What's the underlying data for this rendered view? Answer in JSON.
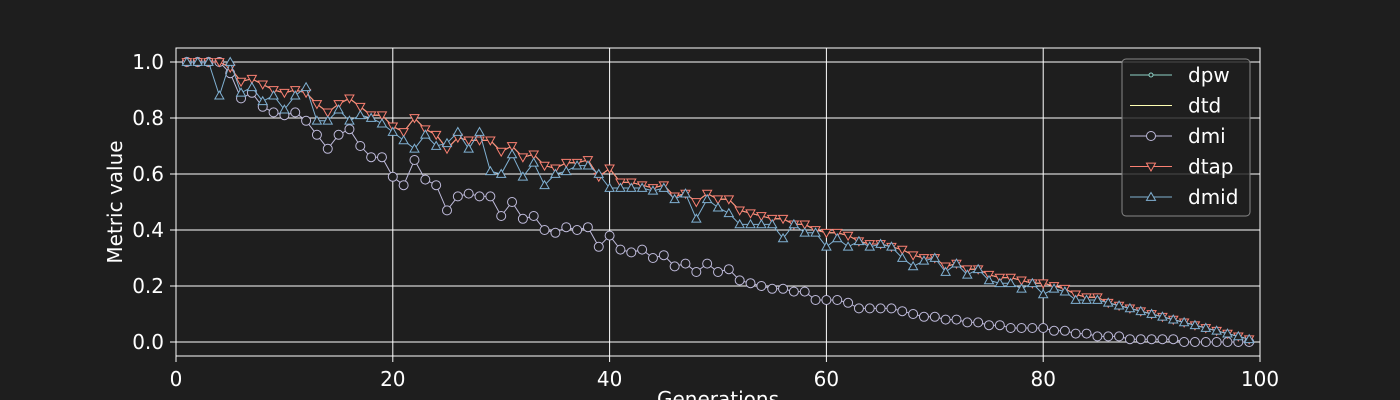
{
  "chart_data": {
    "type": "line",
    "title": "",
    "xlabel": "Generations",
    "ylabel": "Metric value",
    "xlim": [
      0,
      100
    ],
    "ylim": [
      -0.05,
      1.05
    ],
    "x_ticks": [
      0,
      20,
      40,
      60,
      80,
      100
    ],
    "y_ticks": [
      0.0,
      0.2,
      0.4,
      0.6,
      0.8,
      1.0
    ],
    "x_tick_labels": [
      "0",
      "20",
      "40",
      "60",
      "80",
      "100"
    ],
    "y_tick_labels": [
      "0.0",
      "0.2",
      "0.4",
      "0.6",
      "0.8",
      "1.0"
    ],
    "grid": true,
    "legend_position": "top-right",
    "x": [
      1,
      2,
      3,
      4,
      5,
      6,
      7,
      8,
      9,
      10,
      11,
      12,
      13,
      14,
      15,
      16,
      17,
      18,
      19,
      20,
      21,
      22,
      23,
      24,
      25,
      26,
      27,
      28,
      29,
      30,
      31,
      32,
      33,
      34,
      35,
      36,
      37,
      38,
      39,
      40,
      41,
      42,
      43,
      44,
      45,
      46,
      47,
      48,
      49,
      50,
      51,
      52,
      53,
      54,
      55,
      56,
      57,
      58,
      59,
      60,
      61,
      62,
      63,
      64,
      65,
      66,
      67,
      68,
      69,
      70,
      71,
      72,
      73,
      74,
      75,
      76,
      77,
      78,
      79,
      80,
      81,
      82,
      83,
      84,
      85,
      86,
      87,
      88,
      89,
      90,
      91,
      92,
      93,
      94,
      95,
      96,
      97,
      98,
      99
    ],
    "series": [
      {
        "name": "dpw",
        "color": "#8dd3c7",
        "marker": "dot",
        "values": [
          1.0,
          1.0,
          1.0,
          1.0,
          0.98,
          0.93,
          0.94,
          0.92,
          0.9,
          0.89,
          0.9,
          0.89,
          0.85,
          0.82,
          0.85,
          0.87,
          0.84,
          0.81,
          0.81,
          0.77,
          0.75,
          0.8,
          0.76,
          0.74,
          0.69,
          0.73,
          0.72,
          0.72,
          0.72,
          0.68,
          0.7,
          0.66,
          0.67,
          0.63,
          0.62,
          0.64,
          0.64,
          0.65,
          0.59,
          0.62,
          0.57,
          0.57,
          0.56,
          0.55,
          0.56,
          0.52,
          0.53,
          0.5,
          0.53,
          0.51,
          0.51,
          0.47,
          0.46,
          0.45,
          0.44,
          0.44,
          0.42,
          0.42,
          0.4,
          0.39,
          0.39,
          0.38,
          0.36,
          0.35,
          0.35,
          0.34,
          0.33,
          0.31,
          0.3,
          0.3,
          0.27,
          0.28,
          0.26,
          0.26,
          0.24,
          0.23,
          0.23,
          0.22,
          0.21,
          0.21,
          0.2,
          0.19,
          0.17,
          0.16,
          0.16,
          0.14,
          0.13,
          0.12,
          0.11,
          0.1,
          0.09,
          0.08,
          0.07,
          0.06,
          0.05,
          0.04,
          0.03,
          0.02,
          0.01
        ]
      },
      {
        "name": "dtd",
        "color": "#ffffb3",
        "marker": "none",
        "values": [
          1.0,
          1.0,
          1.0,
          1.0,
          0.98,
          0.93,
          0.94,
          0.92,
          0.9,
          0.89,
          0.9,
          0.89,
          0.85,
          0.82,
          0.85,
          0.87,
          0.84,
          0.81,
          0.81,
          0.77,
          0.75,
          0.8,
          0.76,
          0.74,
          0.69,
          0.73,
          0.72,
          0.72,
          0.72,
          0.68,
          0.7,
          0.66,
          0.67,
          0.63,
          0.62,
          0.64,
          0.64,
          0.65,
          0.59,
          0.62,
          0.57,
          0.57,
          0.56,
          0.55,
          0.56,
          0.52,
          0.53,
          0.5,
          0.53,
          0.51,
          0.51,
          0.47,
          0.46,
          0.45,
          0.44,
          0.44,
          0.42,
          0.42,
          0.4,
          0.39,
          0.39,
          0.38,
          0.36,
          0.35,
          0.35,
          0.34,
          0.33,
          0.31,
          0.3,
          0.3,
          0.27,
          0.28,
          0.26,
          0.26,
          0.24,
          0.23,
          0.23,
          0.22,
          0.21,
          0.21,
          0.2,
          0.19,
          0.17,
          0.16,
          0.16,
          0.14,
          0.13,
          0.12,
          0.11,
          0.1,
          0.09,
          0.08,
          0.07,
          0.06,
          0.05,
          0.04,
          0.03,
          0.02,
          0.01
        ]
      },
      {
        "name": "dmi",
        "color": "#bebada",
        "marker": "circle",
        "values": [
          1.0,
          1.0,
          1.0,
          1.0,
          0.96,
          0.87,
          0.89,
          0.84,
          0.82,
          0.81,
          0.82,
          0.79,
          0.74,
          0.69,
          0.74,
          0.76,
          0.7,
          0.66,
          0.66,
          0.59,
          0.56,
          0.65,
          0.58,
          0.56,
          0.47,
          0.52,
          0.53,
          0.52,
          0.52,
          0.45,
          0.5,
          0.44,
          0.45,
          0.4,
          0.39,
          0.41,
          0.4,
          0.41,
          0.34,
          0.38,
          0.33,
          0.32,
          0.33,
          0.3,
          0.31,
          0.27,
          0.28,
          0.25,
          0.28,
          0.25,
          0.26,
          0.22,
          0.21,
          0.2,
          0.19,
          0.19,
          0.18,
          0.18,
          0.15,
          0.15,
          0.15,
          0.14,
          0.12,
          0.12,
          0.12,
          0.12,
          0.11,
          0.1,
          0.09,
          0.09,
          0.08,
          0.08,
          0.07,
          0.07,
          0.06,
          0.06,
          0.05,
          0.05,
          0.05,
          0.05,
          0.04,
          0.04,
          0.03,
          0.03,
          0.02,
          0.02,
          0.02,
          0.01,
          0.01,
          0.01,
          0.01,
          0.01,
          0.0,
          0.0,
          0.0,
          0.0,
          0.0,
          0.0,
          0.0
        ]
      },
      {
        "name": "dtap",
        "color": "#fb8072",
        "marker": "triangle-down",
        "values": [
          1.0,
          1.0,
          1.0,
          1.0,
          0.98,
          0.93,
          0.94,
          0.92,
          0.9,
          0.89,
          0.9,
          0.89,
          0.85,
          0.82,
          0.85,
          0.87,
          0.84,
          0.81,
          0.81,
          0.77,
          0.75,
          0.8,
          0.76,
          0.74,
          0.69,
          0.73,
          0.72,
          0.72,
          0.72,
          0.68,
          0.7,
          0.66,
          0.67,
          0.63,
          0.62,
          0.64,
          0.64,
          0.65,
          0.59,
          0.62,
          0.57,
          0.57,
          0.56,
          0.55,
          0.56,
          0.52,
          0.53,
          0.5,
          0.53,
          0.51,
          0.51,
          0.47,
          0.46,
          0.45,
          0.44,
          0.44,
          0.42,
          0.42,
          0.4,
          0.39,
          0.39,
          0.38,
          0.36,
          0.35,
          0.35,
          0.34,
          0.33,
          0.31,
          0.3,
          0.3,
          0.27,
          0.28,
          0.26,
          0.26,
          0.24,
          0.23,
          0.23,
          0.22,
          0.21,
          0.21,
          0.2,
          0.19,
          0.17,
          0.16,
          0.16,
          0.14,
          0.13,
          0.12,
          0.11,
          0.1,
          0.09,
          0.08,
          0.07,
          0.06,
          0.05,
          0.04,
          0.03,
          0.02,
          0.01
        ]
      },
      {
        "name": "dmid",
        "color": "#80b1d3",
        "marker": "triangle-up",
        "values": [
          1.0,
          1.0,
          1.0,
          0.88,
          1.0,
          0.89,
          0.91,
          0.86,
          0.88,
          0.83,
          0.88,
          0.91,
          0.79,
          0.79,
          0.83,
          0.79,
          0.81,
          0.8,
          0.78,
          0.75,
          0.72,
          0.69,
          0.74,
          0.7,
          0.71,
          0.75,
          0.69,
          0.75,
          0.61,
          0.6,
          0.67,
          0.59,
          0.64,
          0.56,
          0.6,
          0.61,
          0.63,
          0.63,
          0.6,
          0.55,
          0.55,
          0.55,
          0.55,
          0.54,
          0.55,
          0.51,
          0.53,
          0.44,
          0.51,
          0.48,
          0.46,
          0.42,
          0.42,
          0.42,
          0.42,
          0.37,
          0.42,
          0.39,
          0.39,
          0.34,
          0.37,
          0.34,
          0.36,
          0.34,
          0.35,
          0.34,
          0.3,
          0.27,
          0.29,
          0.3,
          0.25,
          0.28,
          0.24,
          0.26,
          0.22,
          0.21,
          0.21,
          0.19,
          0.21,
          0.17,
          0.19,
          0.18,
          0.15,
          0.15,
          0.15,
          0.14,
          0.13,
          0.12,
          0.11,
          0.1,
          0.09,
          0.08,
          0.07,
          0.06,
          0.05,
          0.04,
          0.03,
          0.02,
          0.01
        ]
      }
    ]
  }
}
